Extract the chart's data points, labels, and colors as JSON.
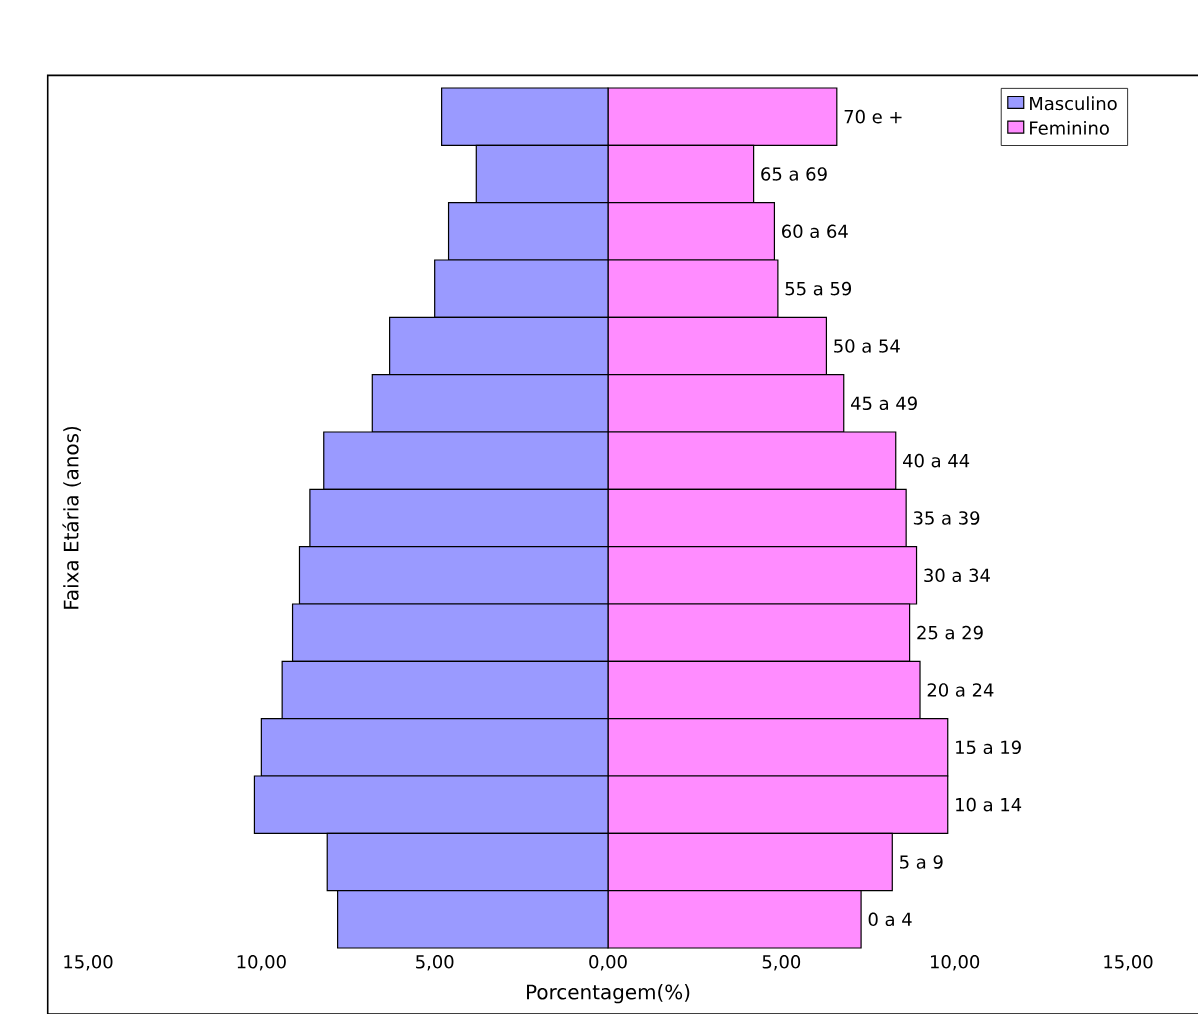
{
  "chart_data": {
    "type": "bar",
    "orientation": "horizontal",
    "xlabel": "Porcentagem(%)",
    "ylabel": "Faixa Etária (anos)",
    "categories": [
      "70 e +",
      "65 a 69",
      "60 a 64",
      "55 a 59",
      "50 a 54",
      "45 a 49",
      "40 a 44",
      "35 a 39",
      "30 a 34",
      "25 a 29",
      "20 a 24",
      "15 a 19",
      "10 a 14",
      "5 a 9",
      "0 a 4"
    ],
    "series": [
      {
        "name": "Masculino",
        "color": "#9a9aff",
        "values": [
          -4.8,
          -3.8,
          -4.6,
          -5.0,
          -6.3,
          -6.8,
          -8.2,
          -8.6,
          -8.9,
          -9.1,
          -9.4,
          -10.0,
          -10.2,
          -8.1,
          -7.8
        ]
      },
      {
        "name": "Feminino",
        "color": "#ff8cff",
        "values": [
          6.6,
          4.2,
          4.8,
          4.9,
          6.3,
          6.8,
          8.3,
          8.6,
          8.9,
          8.7,
          9.0,
          9.8,
          9.8,
          8.2,
          7.3
        ]
      }
    ],
    "xlim": [
      -15,
      15
    ],
    "xticks": [
      {
        "value": -15,
        "label": "15,00"
      },
      {
        "value": -10,
        "label": "10,00"
      },
      {
        "value": -5,
        "label": "5,00"
      },
      {
        "value": 0,
        "label": "0,00"
      },
      {
        "value": 5,
        "label": "5,00"
      },
      {
        "value": 10,
        "label": "10,00"
      },
      {
        "value": 15,
        "label": "15,00"
      }
    ],
    "tick_labels": "x",
    "legend": "top right",
    "grid": false,
    "stacked": true
  }
}
